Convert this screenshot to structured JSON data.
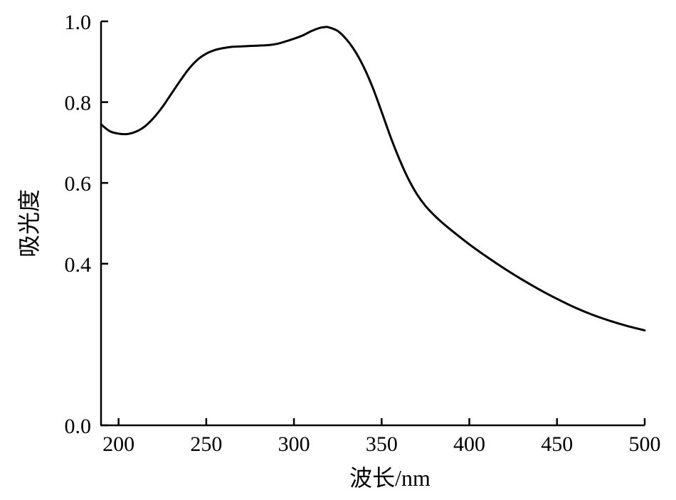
{
  "chart_data": {
    "type": "line",
    "title": "",
    "xlabel": "波长/nm",
    "ylabel": "吸光度",
    "xlim": [
      190,
      500
    ],
    "ylim": [
      0.0,
      1.0
    ],
    "xticks": [
      200,
      250,
      300,
      350,
      400,
      450,
      500
    ],
    "xtick_labels": [
      "200",
      "250",
      "300",
      "350",
      "400",
      "450",
      "500"
    ],
    "yticks": [
      0.0,
      0.4,
      0.6,
      0.8,
      1.0
    ],
    "ytick_labels": [
      "0.0",
      "0.4",
      "0.6",
      "0.8",
      "1.0"
    ],
    "grid": false,
    "legend": "none",
    "line_color": "#000000",
    "series": [
      {
        "x": [
          190,
          195,
          200,
          205,
          210,
          215,
          220,
          225,
          230,
          235,
          240,
          245,
          250,
          255,
          260,
          265,
          270,
          275,
          280,
          285,
          290,
          295,
          300,
          305,
          310,
          315,
          318,
          320,
          325,
          330,
          335,
          340,
          345,
          350,
          355,
          360,
          365,
          370,
          375,
          380,
          385,
          390,
          400,
          410,
          420,
          430,
          440,
          450,
          460,
          470,
          480,
          490,
          500
        ],
        "y": [
          0.745,
          0.728,
          0.722,
          0.721,
          0.727,
          0.74,
          0.761,
          0.788,
          0.82,
          0.852,
          0.882,
          0.905,
          0.92,
          0.929,
          0.934,
          0.937,
          0.938,
          0.939,
          0.94,
          0.941,
          0.944,
          0.95,
          0.957,
          0.965,
          0.976,
          0.984,
          0.986,
          0.985,
          0.976,
          0.955,
          0.925,
          0.885,
          0.835,
          0.776,
          0.715,
          0.66,
          0.612,
          0.573,
          0.543,
          0.52,
          0.5,
          0.482,
          0.448,
          0.417,
          0.388,
          0.361,
          0.336,
          0.313,
          0.292,
          0.274,
          0.259,
          0.246,
          0.235
        ]
      }
    ]
  }
}
